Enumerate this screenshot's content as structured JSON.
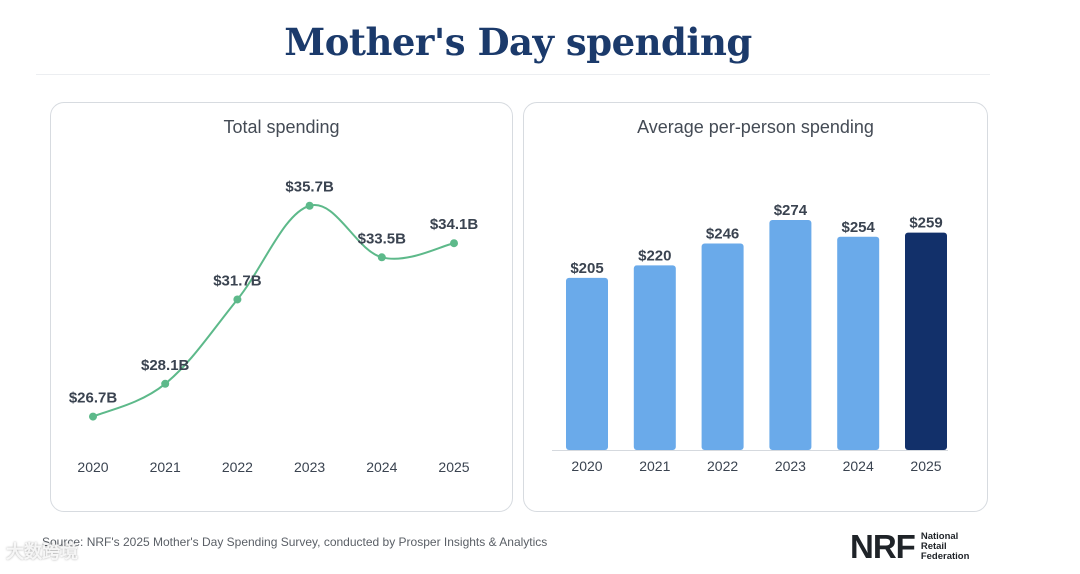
{
  "title": "Mother's Day spending",
  "source": "Source: NRF's 2025 Mother's Day Spending Survey, conducted by Prosper Insights & Analytics",
  "logo": {
    "mark": "NRF",
    "line1": "National",
    "line2": "Retail",
    "line3": "Federation"
  },
  "watermark": "大数跨境",
  "chart_data": [
    {
      "type": "line",
      "title": "Total spending",
      "categories": [
        "2020",
        "2021",
        "2022",
        "2023",
        "2024",
        "2025"
      ],
      "values": [
        26.7,
        28.1,
        31.7,
        35.7,
        33.5,
        34.1
      ],
      "labels": [
        "$26.7B",
        "$28.1B",
        "$31.7B",
        "$35.7B",
        "$33.5B",
        "$34.1B"
      ],
      "ylim": [
        26,
        36.5
      ],
      "grid": false,
      "color": "#5db98a"
    },
    {
      "type": "bar",
      "title": "Average per-person spending",
      "categories": [
        "2020",
        "2021",
        "2022",
        "2023",
        "2024",
        "2025"
      ],
      "values": [
        205,
        220,
        246,
        274,
        254,
        259
      ],
      "labels": [
        "$205",
        "$220",
        "$246",
        "$274",
        "$254",
        "$259"
      ],
      "ylim": [
        0,
        274
      ],
      "grid": false,
      "color": "#6aaaea",
      "highlight_color": "#12306a",
      "highlight_index": 5
    }
  ]
}
